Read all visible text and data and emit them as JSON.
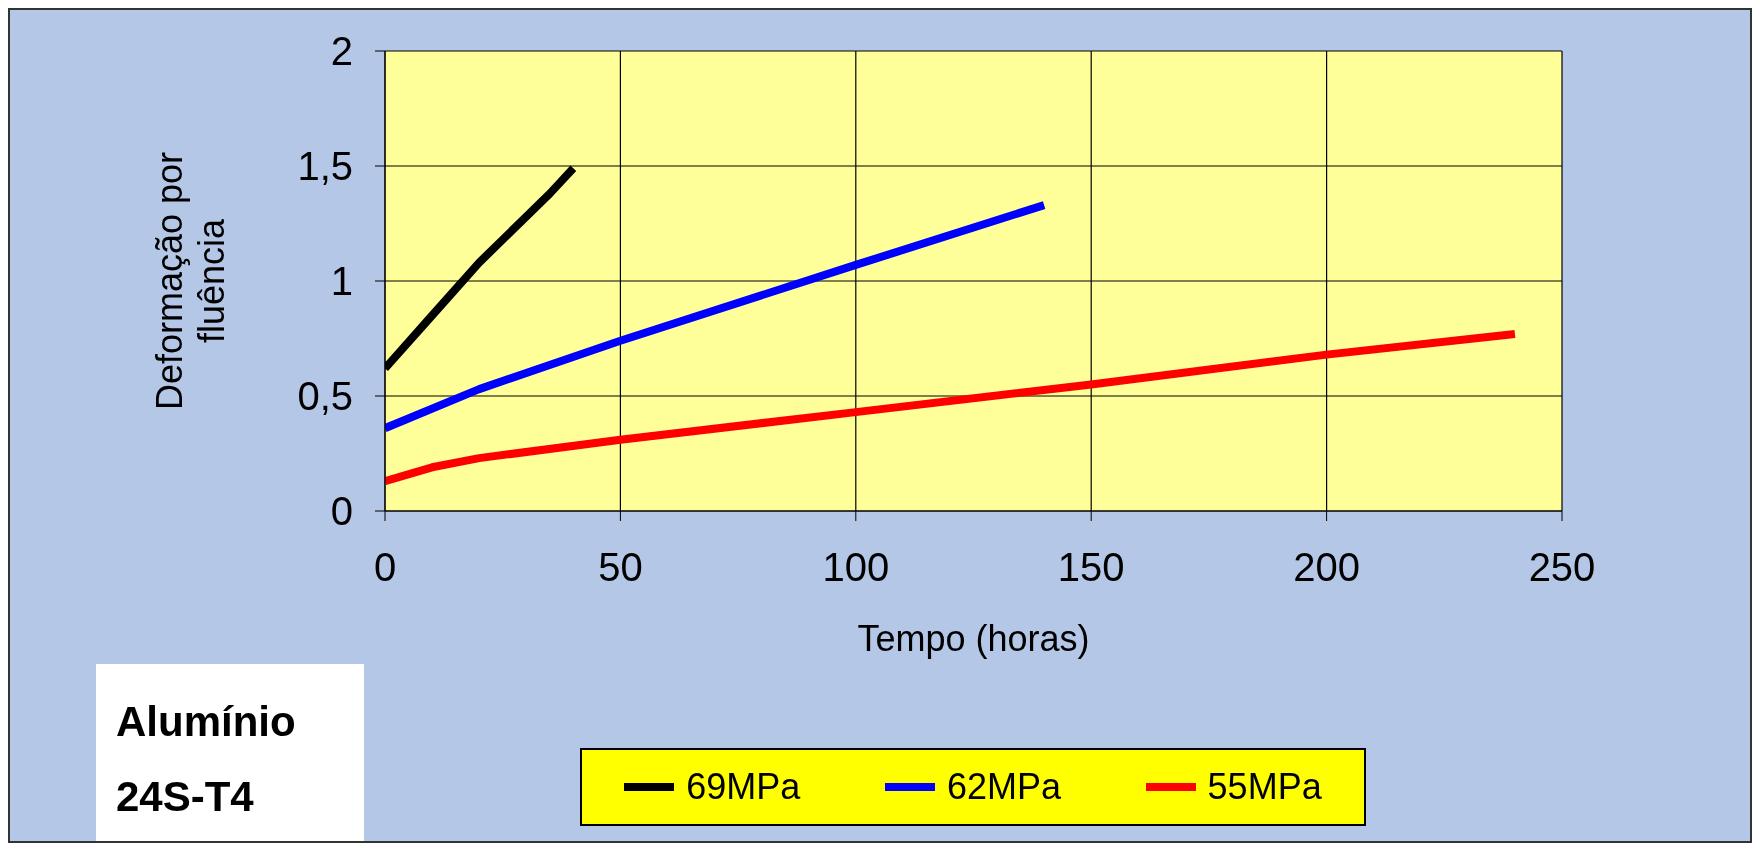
{
  "chart_data": {
    "type": "line",
    "xlabel": "Tempo (horas)",
    "ylabel": "Deformação por fluência",
    "xlim": [
      0,
      250
    ],
    "xticks": [
      0,
      50,
      100,
      150,
      200,
      250
    ],
    "ylim": [
      0,
      2
    ],
    "yticks": [
      0,
      {
        "value": 0.5,
        "label": "0,5"
      },
      1,
      {
        "value": 1.5,
        "label": "1,5"
      },
      2
    ],
    "grid": true,
    "legend": "bottom",
    "marker": "none",
    "line_style": "solid",
    "annotations": [
      "Alumínio 24S-T4"
    ],
    "series": [
      {
        "name": "69MPa",
        "color": "#000000",
        "x": [
          0,
          10,
          20,
          30,
          35,
          40
        ],
        "values": [
          0.62,
          0.85,
          1.08,
          1.28,
          1.38,
          1.49
        ]
      },
      {
        "name": "62MPa",
        "color": "#0000ff",
        "x": [
          0,
          20,
          50,
          100,
          140
        ],
        "values": [
          0.36,
          0.53,
          0.74,
          1.07,
          1.33
        ]
      },
      {
        "name": "55MPa",
        "color": "#ff0000",
        "x": [
          0,
          10,
          20,
          50,
          100,
          150,
          200,
          240
        ],
        "values": [
          0.13,
          0.19,
          0.23,
          0.31,
          0.43,
          0.55,
          0.68,
          0.77
        ]
      }
    ]
  }
}
